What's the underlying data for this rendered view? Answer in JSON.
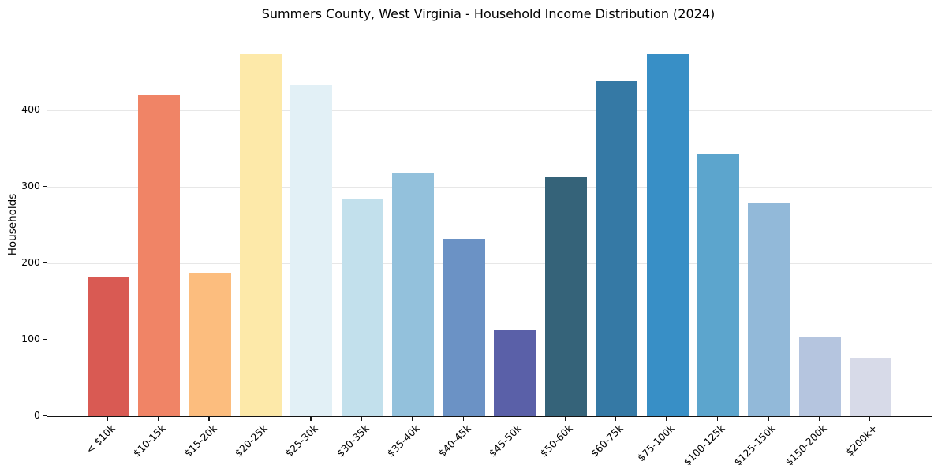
{
  "chart_data": {
    "type": "bar",
    "title": "Summers County, West Virginia - Household Income Distribution (2024)",
    "xlabel": "",
    "ylabel": "Households",
    "categories": [
      "< $10k",
      "$10-15k",
      "$15-20k",
      "$20-25k",
      "$25-30k",
      "$30-35k",
      "$35-40k",
      "$40-45k",
      "$45-50k",
      "$50-60k",
      "$60-75k",
      "$75-100k",
      "$100-125k",
      "$125-150k",
      "$150-200k",
      "$200k+"
    ],
    "values": [
      183,
      421,
      188,
      474,
      433,
      284,
      318,
      232,
      112,
      314,
      438,
      473,
      343,
      279,
      103,
      76
    ],
    "bar_colors": [
      "#d95a53",
      "#f08466",
      "#fcbd7e",
      "#fde9a9",
      "#e2f0f6",
      "#c2e0ec",
      "#93c1dc",
      "#6b92c5",
      "#5a60a8",
      "#356379",
      "#3579a5",
      "#388fc6",
      "#5ca5cd",
      "#92b9d9",
      "#b5c5df",
      "#d7dae8"
    ],
    "yticks": [
      0,
      100,
      200,
      300,
      400
    ],
    "ylim": [
      0,
      498
    ],
    "grid": "horizontal",
    "gridline_color": "#e7e7e7",
    "spine_color": "#141414",
    "background_color": "#ffffff",
    "legend": "none",
    "xtick_rotation_deg": 45
  }
}
